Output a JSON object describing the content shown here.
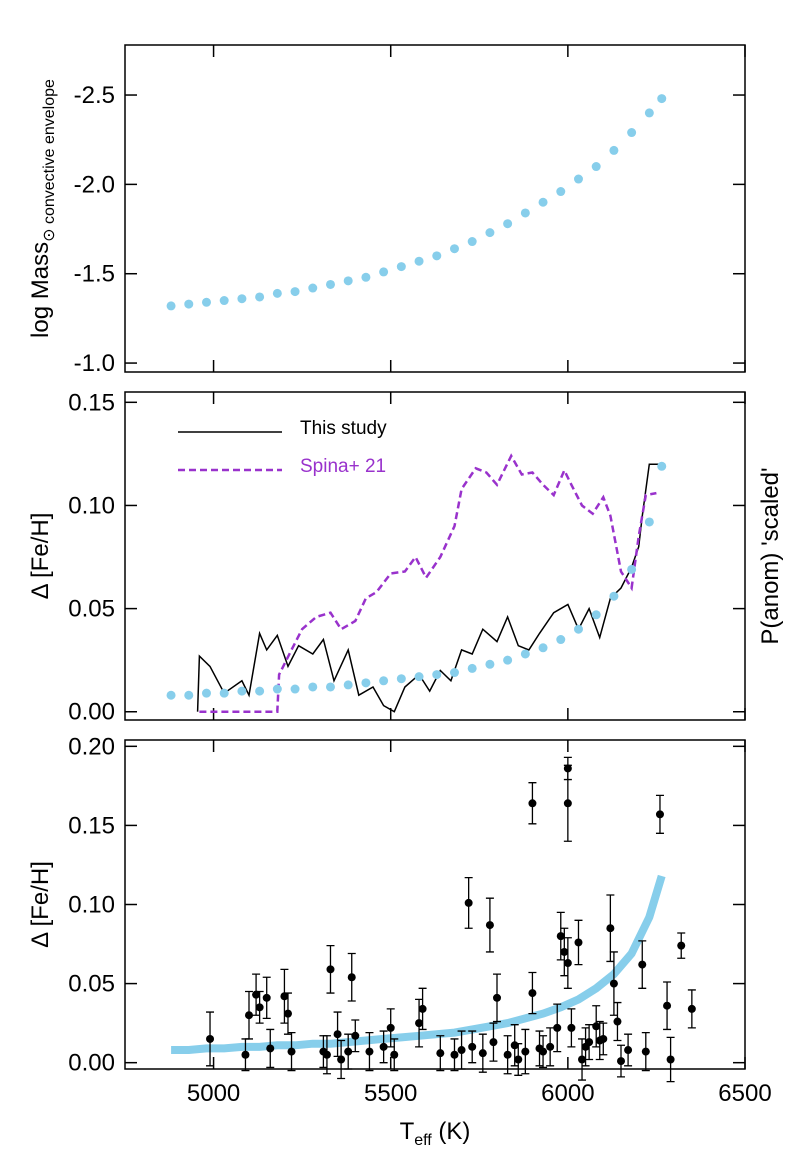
{
  "chart_data": [
    {
      "type": "scatter",
      "ylabel": "log Mass",
      "ylabel_sub": "⊙ convective envelope",
      "xlim": [
        4750,
        6500
      ],
      "ylim": [
        -0.95,
        -2.78
      ],
      "yticks": [
        {
          "value": -1.0,
          "label": "-1.0"
        },
        -1.5,
        {
          "value": -2.0,
          "label": "-2.0"
        },
        -2.5
      ],
      "color": "#87ceeb",
      "x": [
        4880,
        4930,
        4980,
        5030,
        5080,
        5130,
        5180,
        5230,
        5280,
        5330,
        5380,
        5430,
        5480,
        5530,
        5580,
        5630,
        5680,
        5730,
        5780,
        5830,
        5880,
        5930,
        5980,
        6030,
        6080,
        6130,
        6180,
        6230,
        6265
      ],
      "values": [
        -1.32,
        -1.33,
        -1.34,
        -1.35,
        -1.36,
        -1.37,
        -1.39,
        -1.4,
        -1.42,
        -1.44,
        -1.46,
        -1.48,
        -1.51,
        -1.54,
        -1.57,
        -1.6,
        -1.64,
        -1.68,
        -1.73,
        -1.78,
        -1.84,
        -1.9,
        -1.96,
        -2.03,
        -2.1,
        -2.19,
        -2.29,
        -2.4,
        -2.48
      ]
    },
    {
      "type": "line",
      "ylabel": "Δ [Fe/H]",
      "y2label": "P(anom) 'scaled'",
      "xlim": [
        4750,
        6500
      ],
      "ylim": [
        -0.004,
        0.155
      ],
      "yticks": [
        {
          "value": 0,
          "label": "0.00"
        },
        0.05,
        {
          "value": 0.1,
          "label": "0.10"
        },
        0.15
      ],
      "legend": "upper left",
      "series": [
        {
          "name": "This study",
          "color": "#000000",
          "style": "solid",
          "x": [
            4955,
            4960,
            4990,
            5030,
            5080,
            5100,
            5130,
            5150,
            5180,
            5210,
            5240,
            5280,
            5310,
            5340,
            5380,
            5410,
            5450,
            5480,
            5510,
            5540,
            5580,
            5610,
            5640,
            5670,
            5700,
            5730,
            5760,
            5800,
            5830,
            5860,
            5890,
            5920,
            5960,
            6000,
            6030,
            6060,
            6090,
            6120,
            6150,
            6180,
            6200,
            6210,
            6230,
            6260
          ],
          "values": [
            0.0,
            0.027,
            0.022,
            0.009,
            0.015,
            0.008,
            0.038,
            0.03,
            0.037,
            0.022,
            0.032,
            0.028,
            0.035,
            0.015,
            0.03,
            0.008,
            0.012,
            0.003,
            0.0,
            0.012,
            0.018,
            0.01,
            0.02,
            0.015,
            0.03,
            0.028,
            0.04,
            0.034,
            0.046,
            0.032,
            0.03,
            0.038,
            0.048,
            0.052,
            0.04,
            0.05,
            0.036,
            0.055,
            0.06,
            0.07,
            0.08,
            0.095,
            0.12,
            0.12
          ]
        },
        {
          "name": "Spina+ 21",
          "color": "#9932cc",
          "style": "dashed",
          "x": [
            4960,
            5180,
            5185,
            5220,
            5250,
            5290,
            5330,
            5360,
            5400,
            5430,
            5460,
            5500,
            5540,
            5570,
            5600,
            5640,
            5680,
            5700,
            5740,
            5770,
            5800,
            5840,
            5870,
            5900,
            5930,
            5960,
            5990,
            6010,
            6040,
            6070,
            6100,
            6120,
            6150,
            6180,
            6200,
            6220,
            6250
          ],
          "values": [
            0.0,
            0.0,
            0.018,
            0.03,
            0.04,
            0.046,
            0.048,
            0.04,
            0.044,
            0.055,
            0.058,
            0.067,
            0.068,
            0.075,
            0.065,
            0.075,
            0.09,
            0.108,
            0.118,
            0.116,
            0.11,
            0.124,
            0.115,
            0.116,
            0.11,
            0.105,
            0.117,
            0.11,
            0.1,
            0.096,
            0.104,
            0.095,
            0.068,
            0.06,
            0.085,
            0.105,
            0.106
          ]
        },
        {
          "color": "#87ceeb",
          "style": "dots",
          "x": [
            4880,
            4930,
            4980,
            5030,
            5080,
            5130,
            5180,
            5230,
            5280,
            5330,
            5380,
            5430,
            5480,
            5530,
            5580,
            5630,
            5680,
            5730,
            5780,
            5830,
            5880,
            5930,
            5980,
            6030,
            6080,
            6130,
            6180,
            6230,
            6265
          ],
          "values": [
            0.008,
            0.008,
            0.009,
            0.009,
            0.01,
            0.01,
            0.011,
            0.011,
            0.012,
            0.012,
            0.013,
            0.014,
            0.015,
            0.016,
            0.017,
            0.018,
            0.019,
            0.021,
            0.023,
            0.025,
            0.028,
            0.031,
            0.035,
            0.04,
            0.047,
            0.056,
            0.069,
            0.092,
            0.119
          ]
        }
      ]
    },
    {
      "type": "errorbar",
      "ylabel": "Δ [Fe/H]",
      "xlabel": "T",
      "xlabel_sub": "eff",
      "xlabel_suffix": " (K)",
      "xlim": [
        4750,
        6500
      ],
      "ylim": [
        -0.004,
        0.204
      ],
      "xticks": [
        5000,
        5500,
        6000,
        6500
      ],
      "yticks": [
        {
          "value": 0,
          "label": "0.00"
        },
        0.05,
        {
          "value": 0.1,
          "label": "0.10"
        },
        0.15,
        {
          "value": 0.2,
          "label": "0.20"
        }
      ],
      "color": "#000000",
      "x": [
        4990,
        5090,
        5100,
        5120,
        5130,
        5150,
        5160,
        5200,
        5210,
        5220,
        5310,
        5320,
        5330,
        5350,
        5360,
        5380,
        5390,
        5400,
        5440,
        5480,
        5500,
        5510,
        5580,
        5590,
        5640,
        5680,
        5700,
        5720,
        5730,
        5760,
        5780,
        5790,
        5800,
        5830,
        5850,
        5860,
        5880,
        5900,
        5900,
        5920,
        5930,
        5950,
        5970,
        5980,
        5990,
        6000,
        6000,
        6000,
        6010,
        6030,
        6040,
        6050,
        6060,
        6080,
        6090,
        6100,
        6120,
        6130,
        6140,
        6150,
        6170,
        6210,
        6220,
        6260,
        6280,
        6290,
        6320,
        6350
      ],
      "values": [
        0.015,
        0.005,
        0.03,
        0.043,
        0.035,
        0.041,
        0.009,
        0.042,
        0.031,
        0.007,
        0.007,
        0.005,
        0.059,
        0.018,
        0.002,
        0.007,
        0.054,
        0.017,
        0.007,
        0.01,
        0.022,
        0.005,
        0.025,
        0.034,
        0.006,
        0.005,
        0.008,
        0.101,
        0.01,
        0.006,
        0.087,
        0.013,
        0.041,
        0.005,
        0.011,
        0.002,
        0.007,
        0.164,
        0.044,
        0.009,
        0.007,
        0.01,
        0.022,
        0.08,
        0.07,
        0.186,
        0.164,
        0.063,
        0.022,
        0.076,
        0.002,
        0.01,
        0.013,
        0.023,
        0.014,
        0.015,
        0.085,
        0.05,
        0.026,
        0.001,
        0.008,
        0.062,
        0.007,
        0.157,
        0.036,
        0.002,
        0.074,
        0.034
      ],
      "errors": [
        0.017,
        0.01,
        0.015,
        0.013,
        0.01,
        0.013,
        0.012,
        0.017,
        0.013,
        0.012,
        0.01,
        0.012,
        0.015,
        0.014,
        0.012,
        0.011,
        0.015,
        0.01,
        0.012,
        0.01,
        0.012,
        0.01,
        0.015,
        0.013,
        0.011,
        0.01,
        0.012,
        0.016,
        0.01,
        0.012,
        0.017,
        0.012,
        0.015,
        0.012,
        0.013,
        0.01,
        0.014,
        0.013,
        0.013,
        0.011,
        0.01,
        0.012,
        0.015,
        0.015,
        0.015,
        0.007,
        0.024,
        0.016,
        0.012,
        0.014,
        0.013,
        0.012,
        0.011,
        0.013,
        0.012,
        0.01,
        0.021,
        0.02,
        0.012,
        0.01,
        0.01,
        0.015,
        0.012,
        0.012,
        0.015,
        0.014,
        0.008,
        0.012
      ],
      "curve": {
        "color": "#87ceeb",
        "x": [
          4880,
          4930,
          4980,
          5030,
          5080,
          5130,
          5180,
          5230,
          5280,
          5330,
          5380,
          5430,
          5480,
          5530,
          5580,
          5630,
          5680,
          5730,
          5780,
          5830,
          5880,
          5930,
          5980,
          6030,
          6080,
          6130,
          6180,
          6230,
          6265
        ],
        "values": [
          0.008,
          0.008,
          0.009,
          0.009,
          0.01,
          0.01,
          0.011,
          0.011,
          0.012,
          0.012,
          0.013,
          0.014,
          0.015,
          0.016,
          0.017,
          0.018,
          0.019,
          0.021,
          0.023,
          0.025,
          0.028,
          0.031,
          0.035,
          0.04,
          0.047,
          0.056,
          0.069,
          0.092,
          0.118
        ]
      }
    }
  ]
}
